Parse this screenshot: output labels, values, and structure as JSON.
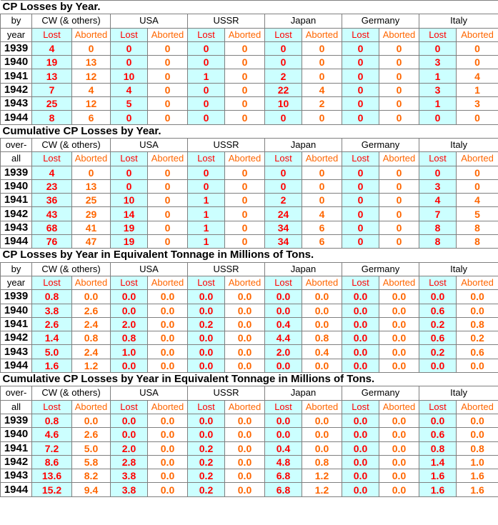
{
  "colors": {
    "lost_bg": "#ccffff",
    "lost_text": "#ff0000",
    "aborted_text": "#ff6600",
    "grid": "#7f7f7f"
  },
  "labels": {
    "lost": "Lost",
    "aborted": "Aborted"
  },
  "countries": [
    "CW (& others)",
    "USA",
    "USSR",
    "Japan",
    "Germany",
    "Italy"
  ],
  "sections": [
    {
      "title": "CP Losses by Year.",
      "label_a": "by",
      "label_b": "year",
      "rows": [
        {
          "year": "1939",
          "values": [
            "4",
            "0",
            "0",
            "0",
            "0",
            "0",
            "0",
            "0",
            "0",
            "0",
            "0",
            "0"
          ]
        },
        {
          "year": "1940",
          "values": [
            "19",
            "13",
            "0",
            "0",
            "0",
            "0",
            "0",
            "0",
            "0",
            "0",
            "3",
            "0"
          ]
        },
        {
          "year": "1941",
          "values": [
            "13",
            "12",
            "10",
            "0",
            "1",
            "0",
            "2",
            "0",
            "0",
            "0",
            "1",
            "4"
          ]
        },
        {
          "year": "1942",
          "values": [
            "7",
            "4",
            "4",
            "0",
            "0",
            "0",
            "22",
            "4",
            "0",
            "0",
            "3",
            "1"
          ]
        },
        {
          "year": "1943",
          "values": [
            "25",
            "12",
            "5",
            "0",
            "0",
            "0",
            "10",
            "2",
            "0",
            "0",
            "1",
            "3"
          ]
        },
        {
          "year": "1944",
          "values": [
            "8",
            "6",
            "0",
            "0",
            "0",
            "0",
            "0",
            "0",
            "0",
            "0",
            "0",
            "0"
          ]
        }
      ]
    },
    {
      "title": "Cumulative CP Losses by Year.",
      "label_a": "over-",
      "label_b": "all",
      "rows": [
        {
          "year": "1939",
          "values": [
            "4",
            "0",
            "0",
            "0",
            "0",
            "0",
            "0",
            "0",
            "0",
            "0",
            "0",
            "0"
          ]
        },
        {
          "year": "1940",
          "values": [
            "23",
            "13",
            "0",
            "0",
            "0",
            "0",
            "0",
            "0",
            "0",
            "0",
            "3",
            "0"
          ]
        },
        {
          "year": "1941",
          "values": [
            "36",
            "25",
            "10",
            "0",
            "1",
            "0",
            "2",
            "0",
            "0",
            "0",
            "4",
            "4"
          ]
        },
        {
          "year": "1942",
          "values": [
            "43",
            "29",
            "14",
            "0",
            "1",
            "0",
            "24",
            "4",
            "0",
            "0",
            "7",
            "5"
          ]
        },
        {
          "year": "1943",
          "values": [
            "68",
            "41",
            "19",
            "0",
            "1",
            "0",
            "34",
            "6",
            "0",
            "0",
            "8",
            "8"
          ]
        },
        {
          "year": "1944",
          "values": [
            "76",
            "47",
            "19",
            "0",
            "1",
            "0",
            "34",
            "6",
            "0",
            "0",
            "8",
            "8"
          ]
        }
      ]
    },
    {
      "title": "CP Losses by Year in Equivalent Tonnage in Millions of Tons.",
      "label_a": "by",
      "label_b": "year",
      "rows": [
        {
          "year": "1939",
          "values": [
            "0.8",
            "0.0",
            "0.0",
            "0.0",
            "0.0",
            "0.0",
            "0.0",
            "0.0",
            "0.0",
            "0.0",
            "0.0",
            "0.0"
          ]
        },
        {
          "year": "1940",
          "values": [
            "3.8",
            "2.6",
            "0.0",
            "0.0",
            "0.0",
            "0.0",
            "0.0",
            "0.0",
            "0.0",
            "0.0",
            "0.6",
            "0.0"
          ]
        },
        {
          "year": "1941",
          "values": [
            "2.6",
            "2.4",
            "2.0",
            "0.0",
            "0.2",
            "0.0",
            "0.4",
            "0.0",
            "0.0",
            "0.0",
            "0.2",
            "0.8"
          ]
        },
        {
          "year": "1942",
          "values": [
            "1.4",
            "0.8",
            "0.8",
            "0.0",
            "0.0",
            "0.0",
            "4.4",
            "0.8",
            "0.0",
            "0.0",
            "0.6",
            "0.2"
          ]
        },
        {
          "year": "1943",
          "values": [
            "5.0",
            "2.4",
            "1.0",
            "0.0",
            "0.0",
            "0.0",
            "2.0",
            "0.4",
            "0.0",
            "0.0",
            "0.2",
            "0.6"
          ]
        },
        {
          "year": "1944",
          "values": [
            "1.6",
            "1.2",
            "0.0",
            "0.0",
            "0.0",
            "0.0",
            "0.0",
            "0.0",
            "0.0",
            "0.0",
            "0.0",
            "0.0"
          ]
        }
      ]
    },
    {
      "title": "Cumulative CP Losses by Year in Equivalent Tonnage in Millions of Tons.",
      "label_a": "over-",
      "label_b": "all",
      "rows": [
        {
          "year": "1939",
          "values": [
            "0.8",
            "0.0",
            "0.0",
            "0.0",
            "0.0",
            "0.0",
            "0.0",
            "0.0",
            "0.0",
            "0.0",
            "0.0",
            "0.0"
          ]
        },
        {
          "year": "1940",
          "values": [
            "4.6",
            "2.6",
            "0.0",
            "0.0",
            "0.0",
            "0.0",
            "0.0",
            "0.0",
            "0.0",
            "0.0",
            "0.6",
            "0.0"
          ]
        },
        {
          "year": "1941",
          "values": [
            "7.2",
            "5.0",
            "2.0",
            "0.0",
            "0.2",
            "0.0",
            "0.4",
            "0.0",
            "0.0",
            "0.0",
            "0.8",
            "0.8"
          ]
        },
        {
          "year": "1942",
          "values": [
            "8.6",
            "5.8",
            "2.8",
            "0.0",
            "0.2",
            "0.0",
            "4.8",
            "0.8",
            "0.0",
            "0.0",
            "1.4",
            "1.0"
          ]
        },
        {
          "year": "1943",
          "values": [
            "13.6",
            "8.2",
            "3.8",
            "0.0",
            "0.2",
            "0.0",
            "6.8",
            "1.2",
            "0.0",
            "0.0",
            "1.6",
            "1.6"
          ]
        },
        {
          "year": "1944",
          "values": [
            "15.2",
            "9.4",
            "3.8",
            "0.0",
            "0.2",
            "0.0",
            "6.8",
            "1.2",
            "0.0",
            "0.0",
            "1.6",
            "1.6"
          ]
        }
      ]
    }
  ]
}
